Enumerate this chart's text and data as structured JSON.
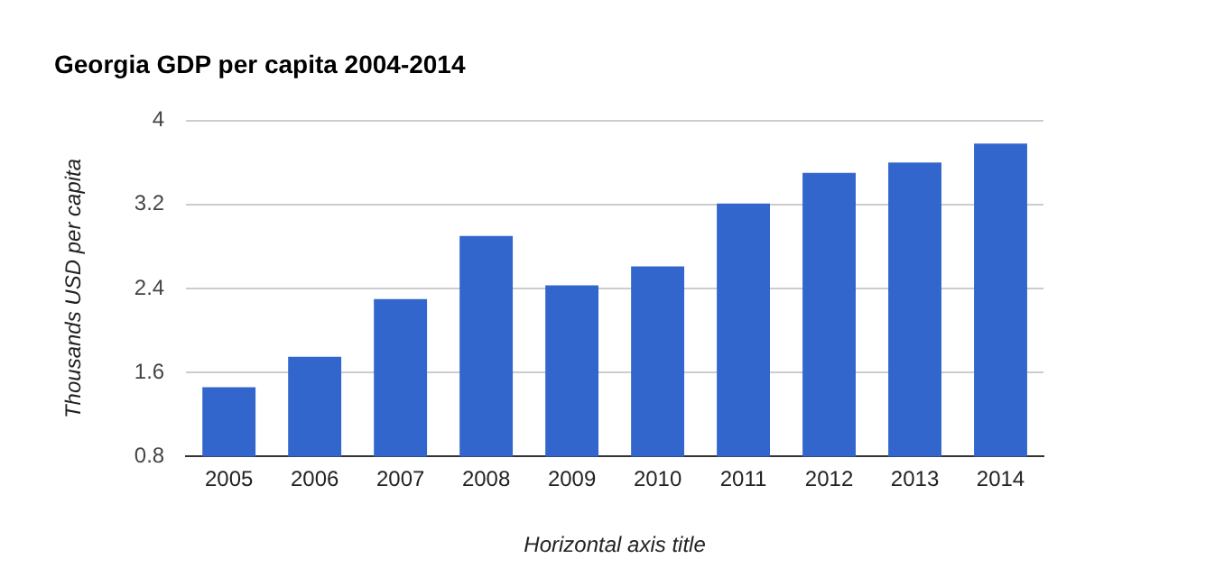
{
  "chart_data": {
    "type": "bar",
    "title": "Georgia GDP per capita 2004-2014",
    "xlabel": "Horizontal axis title",
    "ylabel": "Thousands USD per capita",
    "categories": [
      "2005",
      "2006",
      "2007",
      "2008",
      "2009",
      "2010",
      "2011",
      "2012",
      "2013",
      "2014"
    ],
    "values": [
      1.46,
      1.75,
      2.3,
      2.9,
      2.43,
      2.61,
      3.21,
      3.5,
      3.6,
      3.78
    ],
    "color": "#3366cc",
    "ylim": [
      0.8,
      4
    ],
    "yticks": [
      0.8,
      1.6,
      2.4,
      3.2,
      4
    ],
    "grid": "y",
    "legend": false
  }
}
